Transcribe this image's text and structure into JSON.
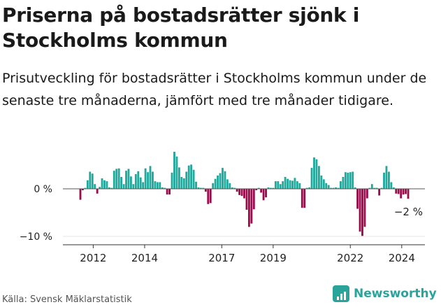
{
  "header": {
    "title": "Priserna på bostadsrätter sjönk i Stockholms kommun",
    "subtitle": "Prisutveckling för bostadsrätter i Stockholms kommun under de senaste tre månaderna, jämfört med tre månader tidigare."
  },
  "footer": {
    "source": "Källa: Svensk Mäklarstatistik",
    "brand": "Newsworthy"
  },
  "colors": {
    "positive": "#1fa89c",
    "negative": "#9b0b4b",
    "axis": "#333333",
    "brand": "#2aa39a"
  },
  "chart_data": {
    "type": "bar",
    "title": "Priserna på bostadsrätter sjönk i Stockholms kommun",
    "xlabel": "",
    "ylabel": "",
    "unit": "%",
    "start_year": 2011.5,
    "end_year": 2024.25,
    "ylim": [
      -10.5,
      7.5
    ],
    "y_ticks": [
      {
        "value": 0,
        "label": "0 %"
      },
      {
        "value": -10,
        "label": "−10 %"
      }
    ],
    "x_ticks": [
      {
        "year": 2012,
        "label": "2012"
      },
      {
        "year": 2014,
        "label": "2014"
      },
      {
        "year": 2017,
        "label": "2017"
      },
      {
        "year": 2019,
        "label": "2019"
      },
      {
        "year": 2022,
        "label": "2022"
      },
      {
        "year": 2024,
        "label": "2024"
      }
    ],
    "last_value_label": "−2 %",
    "values": [
      -2.3,
      -0.3,
      0.2,
      1.8,
      3.6,
      3.2,
      1.0,
      -1.0,
      0.4,
      2.2,
      1.8,
      1.6,
      0.3,
      0.2,
      3.8,
      4.2,
      4.3,
      2.5,
      1.0,
      3.8,
      4.2,
      2.6,
      1.0,
      3.1,
      3.7,
      2.4,
      1.4,
      4.3,
      3.5,
      4.8,
      3.6,
      1.6,
      1.4,
      1.4,
      0.3,
      0.2,
      -1.2,
      -1.2,
      3.4,
      7.8,
      6.8,
      4.5,
      2.5,
      2.2,
      3.6,
      4.9,
      5.1,
      4.0,
      1.5,
      0.3,
      0.2,
      0.2,
      -0.6,
      -3.2,
      -3.0,
      1.2,
      2.1,
      2.8,
      3.3,
      4.4,
      3.7,
      2.0,
      1.2,
      0.3,
      0.2,
      -0.6,
      -1.3,
      -1.5,
      -2.0,
      -4.4,
      -8.0,
      -7.3,
      -4.3,
      -0.3,
      0.2,
      -0.8,
      -2.4,
      -1.8,
      0.3,
      0.2,
      0.2,
      1.6,
      1.6,
      1.0,
      1.6,
      2.5,
      2.1,
      1.8,
      1.7,
      2.3,
      1.6,
      1.2,
      -4.0,
      -4.0,
      0.2,
      0.3,
      4.4,
      6.6,
      6.2,
      4.8,
      2.8,
      2.0,
      1.2,
      0.8,
      0.2,
      0.2,
      0.3,
      0.2,
      1.6,
      2.5,
      3.5,
      3.4,
      3.5,
      3.6,
      0.3,
      -4.2,
      -9.0,
      -9.9,
      -8.0,
      -2.0,
      0.2,
      1.0,
      0.2,
      0.2,
      -1.4,
      0.2,
      3.4,
      4.8,
      3.6,
      1.4,
      0.3,
      -1.0,
      -1.1,
      -2.0,
      -1.2,
      -1.1,
      -2.1
    ]
  }
}
